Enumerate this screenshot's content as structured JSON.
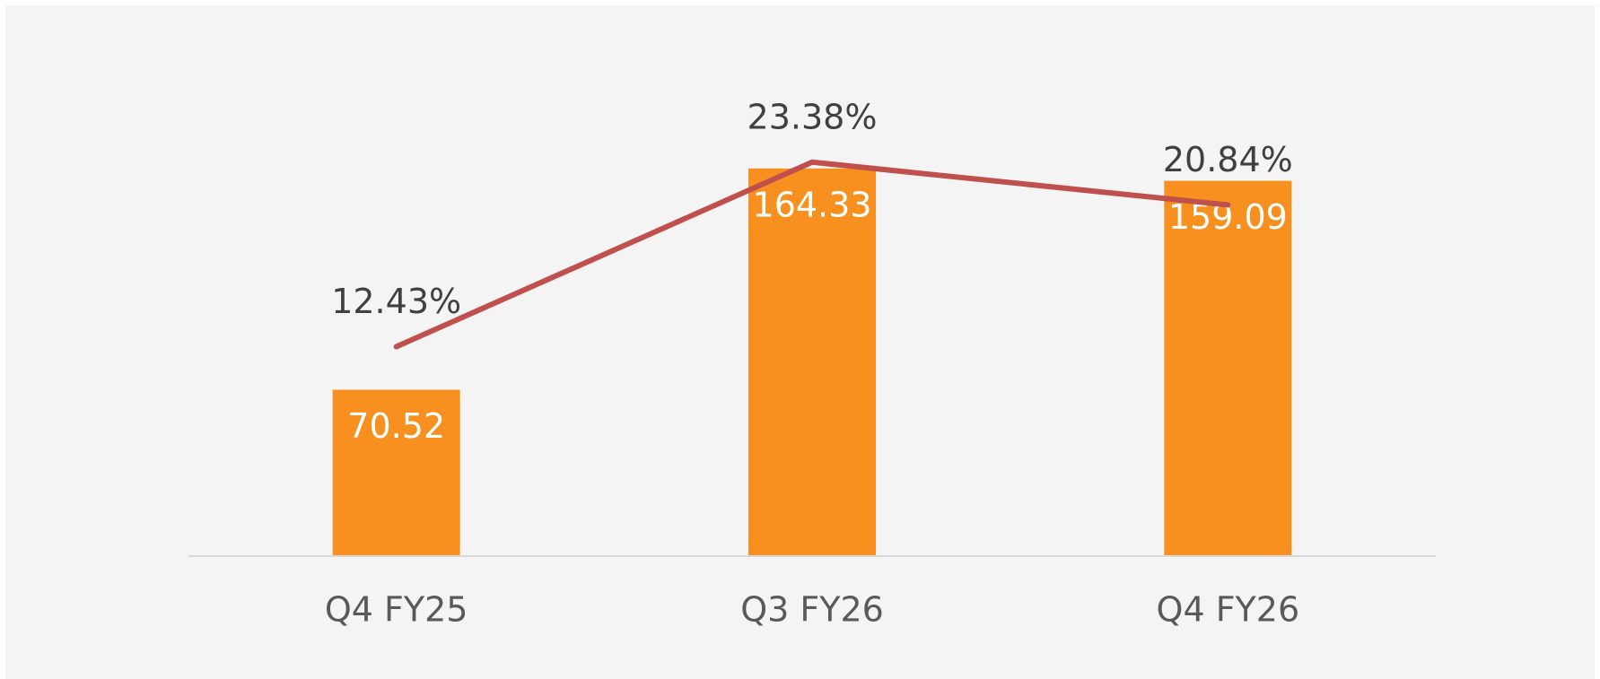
{
  "chart_data": {
    "type": "combo",
    "categories": [
      "Q4 FY25",
      "Q3 FY26",
      "Q4 FY26"
    ],
    "series": [
      {
        "type": "bar",
        "color": "#f7901e",
        "values": [
          70.52,
          164.33,
          159.09
        ]
      },
      {
        "type": "line",
        "color": "#c0504d",
        "axis": "y2",
        "values": [
          12.43,
          23.38,
          20.84
        ],
        "value_labels": [
          "12.43%",
          "23.38%",
          "20.84%"
        ]
      }
    ],
    "ylim": [
      0,
      200
    ],
    "y2lim": [
      0,
      28
    ],
    "grid": false
  }
}
